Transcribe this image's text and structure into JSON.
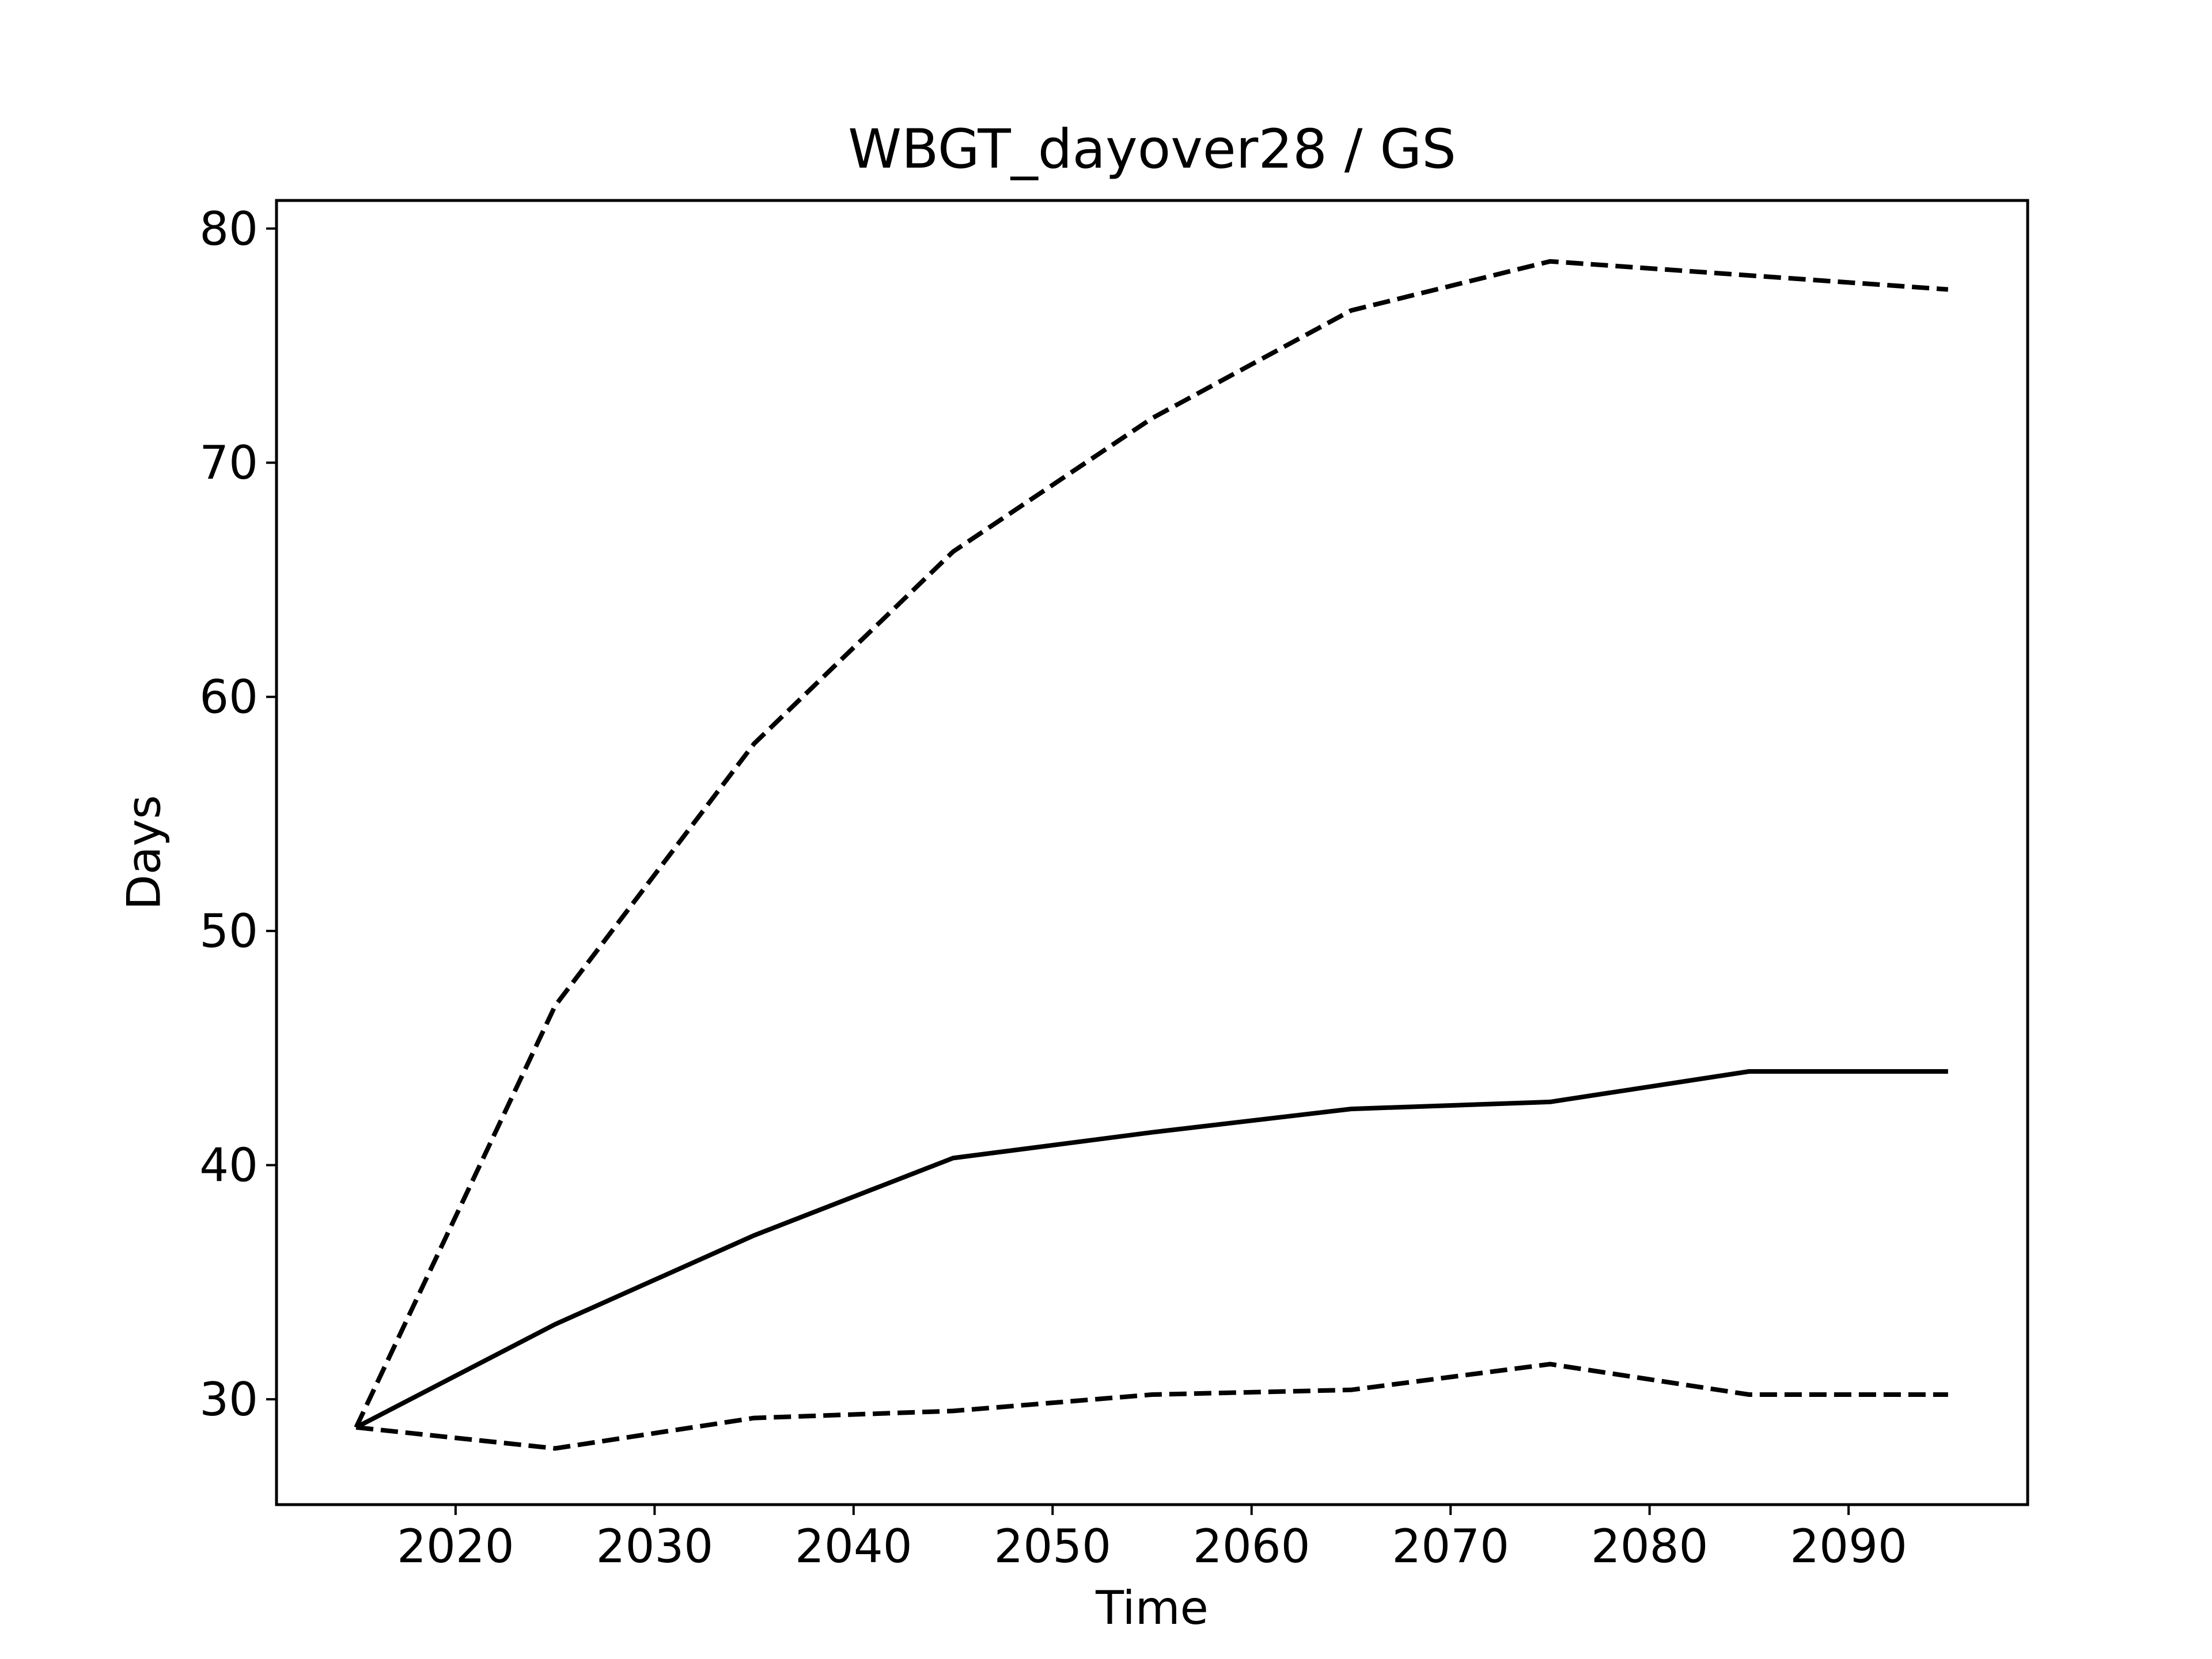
{
  "chart_data": {
    "type": "line",
    "title": "WBGT_dayover28 / GS",
    "xlabel": "Time",
    "ylabel": "Days",
    "xlim": [
      2011,
      2099
    ],
    "ylim": [
      25.5,
      81.2
    ],
    "xticks": [
      2020,
      2030,
      2040,
      2050,
      2060,
      2070,
      2080,
      2090
    ],
    "yticks": [
      30,
      40,
      50,
      60,
      70,
      80
    ],
    "grid": false,
    "x": [
      2015,
      2025,
      2035,
      2045,
      2055,
      2065,
      2075,
      2085,
      2095
    ],
    "series": [
      {
        "style": "solid",
        "color": "#000000",
        "values": [
          28.8,
          33.2,
          37.0,
          40.3,
          41.4,
          42.4,
          42.7,
          44.0,
          44.0
        ]
      },
      {
        "style": "dashed",
        "color": "#000000",
        "values": [
          28.8,
          46.8,
          58.0,
          66.2,
          71.9,
          76.5,
          78.6,
          78.0,
          77.4
        ]
      },
      {
        "style": "dashed",
        "color": "#000000",
        "values": [
          28.8,
          27.9,
          29.2,
          29.5,
          30.2,
          30.4,
          31.5,
          30.2,
          30.2
        ]
      }
    ]
  }
}
